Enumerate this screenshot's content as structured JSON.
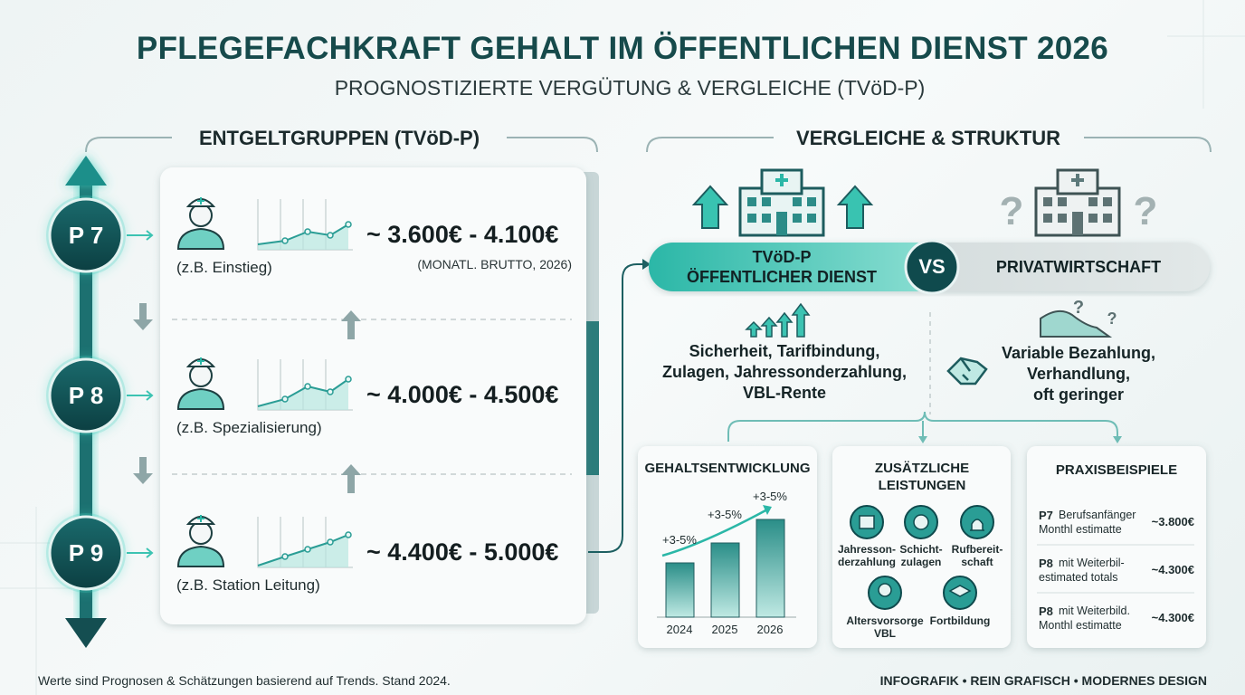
{
  "header": {
    "title": "PFLEGEFACHKRAFT GEHALT IM ÖFFENTLICHEN DIENST 2026",
    "subtitle": "PROGNOSTIZIERTE VERGÜTUNG & VERGLEICHE (TVöD-P)"
  },
  "groups_section": {
    "heading": "ENTGELTGRUPPEN (TVöD-P)",
    "groups": [
      {
        "badge": "P 7",
        "role": "(z.B. Einstieg)",
        "salary": "~ 3.600€ - 4.100€",
        "note": "(MONATL. BRUTTO, 2026)"
      },
      {
        "badge": "P 8",
        "role": "(z.B. Spezialisierung)",
        "salary": "~ 4.000€ - 4.500€"
      },
      {
        "badge": "P 9",
        "role": "(z.B. Station Leitung)",
        "salary": "~ 4.400€ - 5.000€"
      }
    ]
  },
  "comparison_section": {
    "heading": "VERGLEICHE & STRUKTUR",
    "public_label": [
      "TVöD-P",
      "ÖFFENTLICHER DIENST"
    ],
    "versus": "VS",
    "private_label": "PRIVATWIRTSCHAFT",
    "public_points": [
      "Sicherheit, Tarifbindung,",
      "Zulagen, Jahressonderzahlung,",
      "VBL-Rente"
    ],
    "private_points": [
      "Variable Bezahlung,",
      "Verhandlung,",
      "oft geringer"
    ]
  },
  "growth_card": {
    "title": "GEHALTSENTWICKLUNG",
    "years": [
      "2024",
      "2025",
      "2026"
    ],
    "annotations": [
      "+3-5%",
      "+3-5%",
      "+3-5%"
    ]
  },
  "benefits_card": {
    "title": [
      "ZUSÄTZLICHE",
      "LEISTUNGEN"
    ],
    "items": [
      [
        "Jahresson-",
        "derzahlung"
      ],
      [
        "Schicht-",
        "zulagen"
      ],
      [
        "Rufbereit-",
        "schaft"
      ],
      [
        "Altersvorsorge",
        "VBL"
      ],
      [
        "Fortbildung"
      ]
    ]
  },
  "examples_card": {
    "title": "PRAXISBEISPIELE",
    "rows": [
      {
        "group": "P7",
        "text": [
          "Berufsanfänger",
          "Monthl estimatte"
        ],
        "amount": "~3.800€"
      },
      {
        "group": "P8",
        "text": [
          "mit Weiterbil-",
          "estimated totals"
        ],
        "amount": "~4.300€"
      },
      {
        "group": "P8",
        "text": [
          "mit Weiterbild.",
          "Monthl estimatte"
        ],
        "amount": "~4.300€"
      }
    ]
  },
  "footer": {
    "note": "Werte sind Prognosen & Schätzungen basierend auf Trends. Stand 2024.",
    "tagline": "INFOGRAFIK • REIN GRAFISCH • MODERNES DESIGN"
  }
}
